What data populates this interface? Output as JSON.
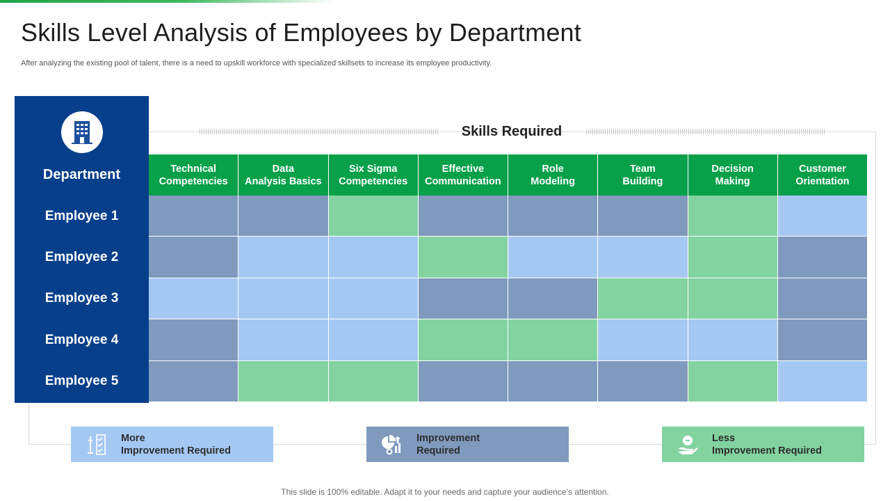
{
  "slide": {
    "title": "Skills Level Analysis of Employees by Department",
    "subtitle": "After  analyzing the existing pool of talent, there is a need to upskill workforce with specialized skillsets to increase its employee productivity.",
    "footer": "This slide is 100% editable. Adapt it to your needs and capture your audience’s attention."
  },
  "department": {
    "label": "Department",
    "icon": "building-icon",
    "employees": [
      "Employee 1",
      "Employee 2",
      "Employee 3",
      "Employee 4",
      "Employee 5"
    ]
  },
  "skills": {
    "title": "Skills Required",
    "headers": [
      [
        "Technical",
        "Competencies"
      ],
      [
        "Data",
        "Analysis Basics"
      ],
      [
        "Six Sigma",
        "Competencies"
      ],
      [
        "Effective",
        "Communication"
      ],
      [
        "Role",
        "Modeling"
      ],
      [
        "Team",
        "Building"
      ],
      [
        "Decision",
        "Making"
      ],
      [
        "Customer",
        "Orientation"
      ]
    ],
    "matrix": [
      [
        "improvement",
        "improvement",
        "less",
        "improvement",
        "improvement",
        "improvement",
        "less",
        "more"
      ],
      [
        "improvement",
        "more",
        "more",
        "less",
        "more",
        "more",
        "less",
        "improvement"
      ],
      [
        "more",
        "more",
        "more",
        "improvement",
        "improvement",
        "less",
        "less",
        "improvement"
      ],
      [
        "improvement",
        "more",
        "more",
        "less",
        "less",
        "more",
        "more",
        "improvement"
      ],
      [
        "improvement",
        "less",
        "less",
        "improvement",
        "improvement",
        "improvement",
        "less",
        "more"
      ]
    ]
  },
  "legend": {
    "more": {
      "line1": "More",
      "line2": "Improvement Required",
      "color": "#a5c8f3",
      "icon": "checklist-icon"
    },
    "improvement": {
      "line1": "Improvement",
      "line2": "Required",
      "color": "#7f9abd",
      "icon": "growth-chart-icon"
    },
    "less": {
      "line1": "Less",
      "line2": "Improvement Required",
      "color": "#82d3a0",
      "icon": "hand-coin-icon"
    }
  },
  "colors": {
    "department_bg": "#073f8a",
    "header_green": "#09a04a",
    "more": "#a5c8f3",
    "improvement": "#7f9abd",
    "less": "#82d3a0"
  }
}
